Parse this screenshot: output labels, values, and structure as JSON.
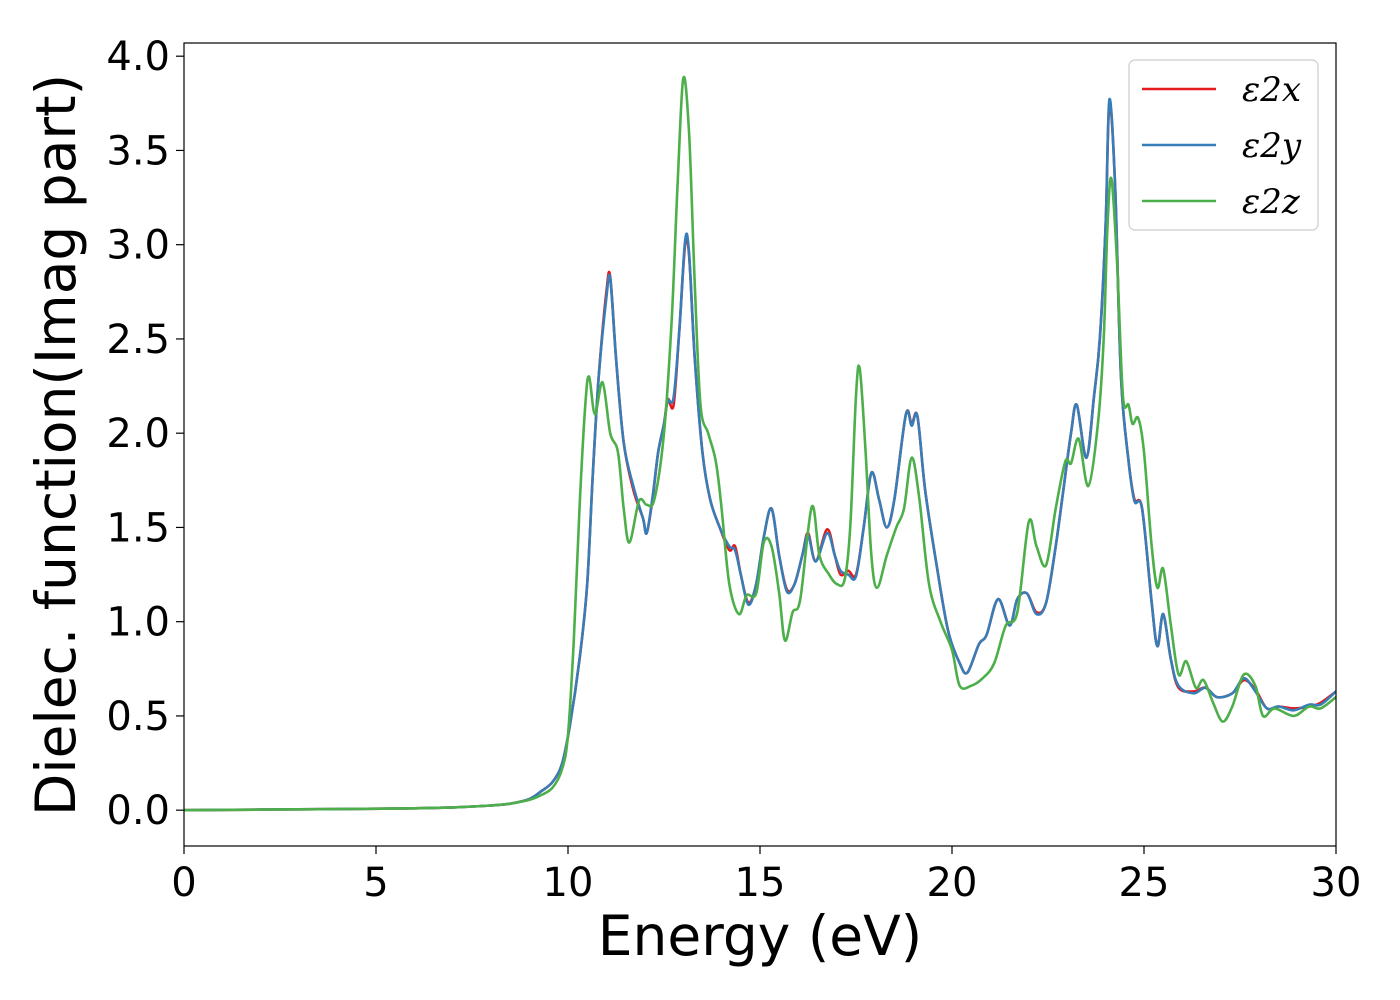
{
  "chart_data": {
    "type": "line",
    "xlabel": "Energy (eV)",
    "ylabel": "Dielec. function(Imag part)",
    "xlim": [
      0,
      30
    ],
    "ylim": [
      -0.19,
      4.07
    ],
    "x_ticks": [
      "0",
      "5",
      "10",
      "15",
      "20",
      "25",
      "30"
    ],
    "y_ticks": [
      "0.0",
      "0.5",
      "1.0",
      "1.5",
      "2.0",
      "2.5",
      "3.0",
      "3.5",
      "4.0"
    ],
    "grid": false,
    "legend_position": "top-right",
    "series": [
      {
        "name": "ε2x",
        "color": "#e41a1c",
        "points": [
          [
            0,
            0
          ],
          [
            2,
            0.003
          ],
          [
            4,
            0.006
          ],
          [
            6,
            0.01
          ],
          [
            7,
            0.015
          ],
          [
            8,
            0.025
          ],
          [
            8.5,
            0.035
          ],
          [
            9,
            0.06
          ],
          [
            9.3,
            0.1
          ],
          [
            9.6,
            0.15
          ],
          [
            9.85,
            0.25
          ],
          [
            10.05,
            0.45
          ],
          [
            10.3,
            0.8
          ],
          [
            10.5,
            1.2
          ],
          [
            10.65,
            1.8
          ],
          [
            10.8,
            2.3
          ],
          [
            11.0,
            2.75
          ],
          [
            11.1,
            2.83
          ],
          [
            11.25,
            2.4
          ],
          [
            11.45,
            1.95
          ],
          [
            11.7,
            1.7
          ],
          [
            11.95,
            1.55
          ],
          [
            12.05,
            1.47
          ],
          [
            12.2,
            1.65
          ],
          [
            12.35,
            1.9
          ],
          [
            12.5,
            2.05
          ],
          [
            12.6,
            2.18
          ],
          [
            12.75,
            2.15
          ],
          [
            12.9,
            2.55
          ],
          [
            13.05,
            3.0
          ],
          [
            13.15,
            2.95
          ],
          [
            13.3,
            2.4
          ],
          [
            13.5,
            1.9
          ],
          [
            13.7,
            1.65
          ],
          [
            13.95,
            1.5
          ],
          [
            14.2,
            1.38
          ],
          [
            14.35,
            1.4
          ],
          [
            14.5,
            1.25
          ],
          [
            14.7,
            1.1
          ],
          [
            14.9,
            1.2
          ],
          [
            15.1,
            1.45
          ],
          [
            15.3,
            1.6
          ],
          [
            15.5,
            1.35
          ],
          [
            15.7,
            1.17
          ],
          [
            15.9,
            1.2
          ],
          [
            16.1,
            1.35
          ],
          [
            16.25,
            1.47
          ],
          [
            16.45,
            1.32
          ],
          [
            16.75,
            1.49
          ],
          [
            16.95,
            1.35
          ],
          [
            17.1,
            1.25
          ],
          [
            17.3,
            1.27
          ],
          [
            17.5,
            1.25
          ],
          [
            17.7,
            1.5
          ],
          [
            17.9,
            1.79
          ],
          [
            18.1,
            1.65
          ],
          [
            18.3,
            1.5
          ],
          [
            18.5,
            1.65
          ],
          [
            18.8,
            2.1
          ],
          [
            18.95,
            2.05
          ],
          [
            19.1,
            2.09
          ],
          [
            19.3,
            1.7
          ],
          [
            19.6,
            1.3
          ],
          [
            19.9,
            0.95
          ],
          [
            20.2,
            0.78
          ],
          [
            20.4,
            0.73
          ],
          [
            20.7,
            0.88
          ],
          [
            20.9,
            0.93
          ],
          [
            21.2,
            1.12
          ],
          [
            21.5,
            0.98
          ],
          [
            21.7,
            1.12
          ],
          [
            21.95,
            1.15
          ],
          [
            22.2,
            1.05
          ],
          [
            22.45,
            1.1
          ],
          [
            22.7,
            1.4
          ],
          [
            22.9,
            1.7
          ],
          [
            23.1,
            2.0
          ],
          [
            23.25,
            2.15
          ],
          [
            23.5,
            1.87
          ],
          [
            23.7,
            2.2
          ],
          [
            23.85,
            2.5
          ],
          [
            24.0,
            3.1
          ],
          [
            24.1,
            3.75
          ],
          [
            24.25,
            3.3
          ],
          [
            24.4,
            2.3
          ],
          [
            24.6,
            1.85
          ],
          [
            24.75,
            1.65
          ],
          [
            24.95,
            1.6
          ],
          [
            25.2,
            1.1
          ],
          [
            25.35,
            0.87
          ],
          [
            25.5,
            1.04
          ],
          [
            25.7,
            0.8
          ],
          [
            25.9,
            0.65
          ],
          [
            26.3,
            0.63
          ],
          [
            26.6,
            0.65
          ],
          [
            26.9,
            0.6
          ],
          [
            27.3,
            0.62
          ],
          [
            27.6,
            0.69
          ],
          [
            27.9,
            0.64
          ],
          [
            28.2,
            0.54
          ],
          [
            28.5,
            0.55
          ],
          [
            28.9,
            0.54
          ],
          [
            29.3,
            0.55
          ],
          [
            29.6,
            0.57
          ],
          [
            30,
            0.63
          ]
        ]
      },
      {
        "name": "ε2y",
        "color": "#377eb8",
        "points": [
          [
            0,
            0
          ],
          [
            2,
            0.003
          ],
          [
            4,
            0.006
          ],
          [
            6,
            0.01
          ],
          [
            7,
            0.015
          ],
          [
            8,
            0.025
          ],
          [
            8.5,
            0.035
          ],
          [
            9,
            0.06
          ],
          [
            9.3,
            0.1
          ],
          [
            9.6,
            0.15
          ],
          [
            9.85,
            0.25
          ],
          [
            10.05,
            0.45
          ],
          [
            10.3,
            0.8
          ],
          [
            10.5,
            1.2
          ],
          [
            10.65,
            1.8
          ],
          [
            10.8,
            2.3
          ],
          [
            11.0,
            2.72
          ],
          [
            11.1,
            2.82
          ],
          [
            11.25,
            2.4
          ],
          [
            11.45,
            1.95
          ],
          [
            11.7,
            1.72
          ],
          [
            11.95,
            1.55
          ],
          [
            12.05,
            1.47
          ],
          [
            12.2,
            1.66
          ],
          [
            12.35,
            1.9
          ],
          [
            12.5,
            2.05
          ],
          [
            12.6,
            2.17
          ],
          [
            12.75,
            2.19
          ],
          [
            12.9,
            2.55
          ],
          [
            13.05,
            3.02
          ],
          [
            13.15,
            2.96
          ],
          [
            13.3,
            2.4
          ],
          [
            13.5,
            1.9
          ],
          [
            13.7,
            1.65
          ],
          [
            13.95,
            1.5
          ],
          [
            14.2,
            1.4
          ],
          [
            14.35,
            1.38
          ],
          [
            14.5,
            1.25
          ],
          [
            14.7,
            1.09
          ],
          [
            14.9,
            1.2
          ],
          [
            15.1,
            1.45
          ],
          [
            15.3,
            1.6
          ],
          [
            15.5,
            1.35
          ],
          [
            15.7,
            1.16
          ],
          [
            15.9,
            1.2
          ],
          [
            16.1,
            1.35
          ],
          [
            16.25,
            1.46
          ],
          [
            16.45,
            1.32
          ],
          [
            16.75,
            1.47
          ],
          [
            16.95,
            1.35
          ],
          [
            17.1,
            1.27
          ],
          [
            17.3,
            1.25
          ],
          [
            17.5,
            1.24
          ],
          [
            17.7,
            1.5
          ],
          [
            17.9,
            1.79
          ],
          [
            18.1,
            1.65
          ],
          [
            18.3,
            1.5
          ],
          [
            18.5,
            1.65
          ],
          [
            18.8,
            2.1
          ],
          [
            18.95,
            2.04
          ],
          [
            19.1,
            2.09
          ],
          [
            19.3,
            1.7
          ],
          [
            19.6,
            1.3
          ],
          [
            19.9,
            0.95
          ],
          [
            20.2,
            0.78
          ],
          [
            20.4,
            0.73
          ],
          [
            20.7,
            0.88
          ],
          [
            20.9,
            0.93
          ],
          [
            21.2,
            1.12
          ],
          [
            21.5,
            0.98
          ],
          [
            21.7,
            1.12
          ],
          [
            21.95,
            1.15
          ],
          [
            22.2,
            1.04
          ],
          [
            22.45,
            1.1
          ],
          [
            22.7,
            1.4
          ],
          [
            22.9,
            1.7
          ],
          [
            23.1,
            2.0
          ],
          [
            23.25,
            2.15
          ],
          [
            23.5,
            1.87
          ],
          [
            23.7,
            2.2
          ],
          [
            23.85,
            2.5
          ],
          [
            24.0,
            3.1
          ],
          [
            24.1,
            3.77
          ],
          [
            24.25,
            3.3
          ],
          [
            24.4,
            2.3
          ],
          [
            24.6,
            1.85
          ],
          [
            24.75,
            1.64
          ],
          [
            24.95,
            1.6
          ],
          [
            25.2,
            1.1
          ],
          [
            25.35,
            0.87
          ],
          [
            25.5,
            1.04
          ],
          [
            25.7,
            0.8
          ],
          [
            25.9,
            0.66
          ],
          [
            26.3,
            0.62
          ],
          [
            26.6,
            0.65
          ],
          [
            26.9,
            0.6
          ],
          [
            27.3,
            0.62
          ],
          [
            27.6,
            0.7
          ],
          [
            27.9,
            0.63
          ],
          [
            28.2,
            0.54
          ],
          [
            28.5,
            0.55
          ],
          [
            28.9,
            0.53
          ],
          [
            29.3,
            0.56
          ],
          [
            29.6,
            0.56
          ],
          [
            30,
            0.63
          ]
        ]
      },
      {
        "name": "ε2z",
        "color": "#4daf4a",
        "points": [
          [
            0,
            0
          ],
          [
            2,
            0.003
          ],
          [
            4,
            0.006
          ],
          [
            6,
            0.01
          ],
          [
            7,
            0.015
          ],
          [
            8,
            0.025
          ],
          [
            8.5,
            0.035
          ],
          [
            9,
            0.055
          ],
          [
            9.3,
            0.08
          ],
          [
            9.6,
            0.12
          ],
          [
            9.85,
            0.22
          ],
          [
            10.0,
            0.4
          ],
          [
            10.15,
            0.9
          ],
          [
            10.3,
            1.6
          ],
          [
            10.45,
            2.15
          ],
          [
            10.55,
            2.3
          ],
          [
            10.7,
            2.1
          ],
          [
            10.9,
            2.27
          ],
          [
            11.1,
            2.0
          ],
          [
            11.3,
            1.9
          ],
          [
            11.45,
            1.6
          ],
          [
            11.6,
            1.42
          ],
          [
            11.85,
            1.64
          ],
          [
            12.05,
            1.62
          ],
          [
            12.25,
            1.65
          ],
          [
            12.5,
            2.0
          ],
          [
            12.7,
            2.6
          ],
          [
            12.85,
            3.3
          ],
          [
            13.0,
            3.88
          ],
          [
            13.15,
            3.6
          ],
          [
            13.3,
            2.8
          ],
          [
            13.45,
            2.15
          ],
          [
            13.65,
            2.0
          ],
          [
            13.85,
            1.85
          ],
          [
            14.0,
            1.6
          ],
          [
            14.2,
            1.2
          ],
          [
            14.45,
            1.04
          ],
          [
            14.65,
            1.14
          ],
          [
            14.9,
            1.15
          ],
          [
            15.1,
            1.42
          ],
          [
            15.3,
            1.4
          ],
          [
            15.5,
            1.15
          ],
          [
            15.65,
            0.9
          ],
          [
            15.85,
            1.05
          ],
          [
            16.05,
            1.12
          ],
          [
            16.35,
            1.61
          ],
          [
            16.55,
            1.35
          ],
          [
            16.8,
            1.25
          ],
          [
            17.0,
            1.2
          ],
          [
            17.2,
            1.22
          ],
          [
            17.35,
            1.5
          ],
          [
            17.5,
            2.2
          ],
          [
            17.6,
            2.34
          ],
          [
            17.75,
            1.9
          ],
          [
            17.9,
            1.35
          ],
          [
            18.05,
            1.18
          ],
          [
            18.3,
            1.35
          ],
          [
            18.55,
            1.5
          ],
          [
            18.75,
            1.6
          ],
          [
            18.95,
            1.87
          ],
          [
            19.15,
            1.65
          ],
          [
            19.4,
            1.2
          ],
          [
            19.7,
            1.0
          ],
          [
            20.0,
            0.85
          ],
          [
            20.2,
            0.66
          ],
          [
            20.5,
            0.66
          ],
          [
            20.8,
            0.7
          ],
          [
            21.1,
            0.78
          ],
          [
            21.4,
            0.98
          ],
          [
            21.7,
            1.05
          ],
          [
            22.0,
            1.53
          ],
          [
            22.2,
            1.4
          ],
          [
            22.45,
            1.3
          ],
          [
            22.7,
            1.6
          ],
          [
            22.95,
            1.85
          ],
          [
            23.1,
            1.84
          ],
          [
            23.3,
            1.97
          ],
          [
            23.55,
            1.72
          ],
          [
            23.8,
            2.05
          ],
          [
            23.95,
            2.5
          ],
          [
            24.05,
            3.1
          ],
          [
            24.15,
            3.35
          ],
          [
            24.3,
            2.9
          ],
          [
            24.45,
            2.2
          ],
          [
            24.6,
            2.15
          ],
          [
            24.7,
            2.05
          ],
          [
            24.85,
            2.08
          ],
          [
            25.0,
            1.9
          ],
          [
            25.2,
            1.4
          ],
          [
            25.35,
            1.18
          ],
          [
            25.5,
            1.28
          ],
          [
            25.7,
            0.98
          ],
          [
            25.9,
            0.72
          ],
          [
            26.1,
            0.79
          ],
          [
            26.35,
            0.65
          ],
          [
            26.55,
            0.69
          ],
          [
            26.8,
            0.57
          ],
          [
            27.05,
            0.47
          ],
          [
            27.3,
            0.55
          ],
          [
            27.6,
            0.72
          ],
          [
            27.9,
            0.66
          ],
          [
            28.1,
            0.5
          ],
          [
            28.4,
            0.54
          ],
          [
            28.9,
            0.5
          ],
          [
            29.3,
            0.55
          ],
          [
            29.6,
            0.54
          ],
          [
            30,
            0.6
          ]
        ]
      }
    ]
  }
}
